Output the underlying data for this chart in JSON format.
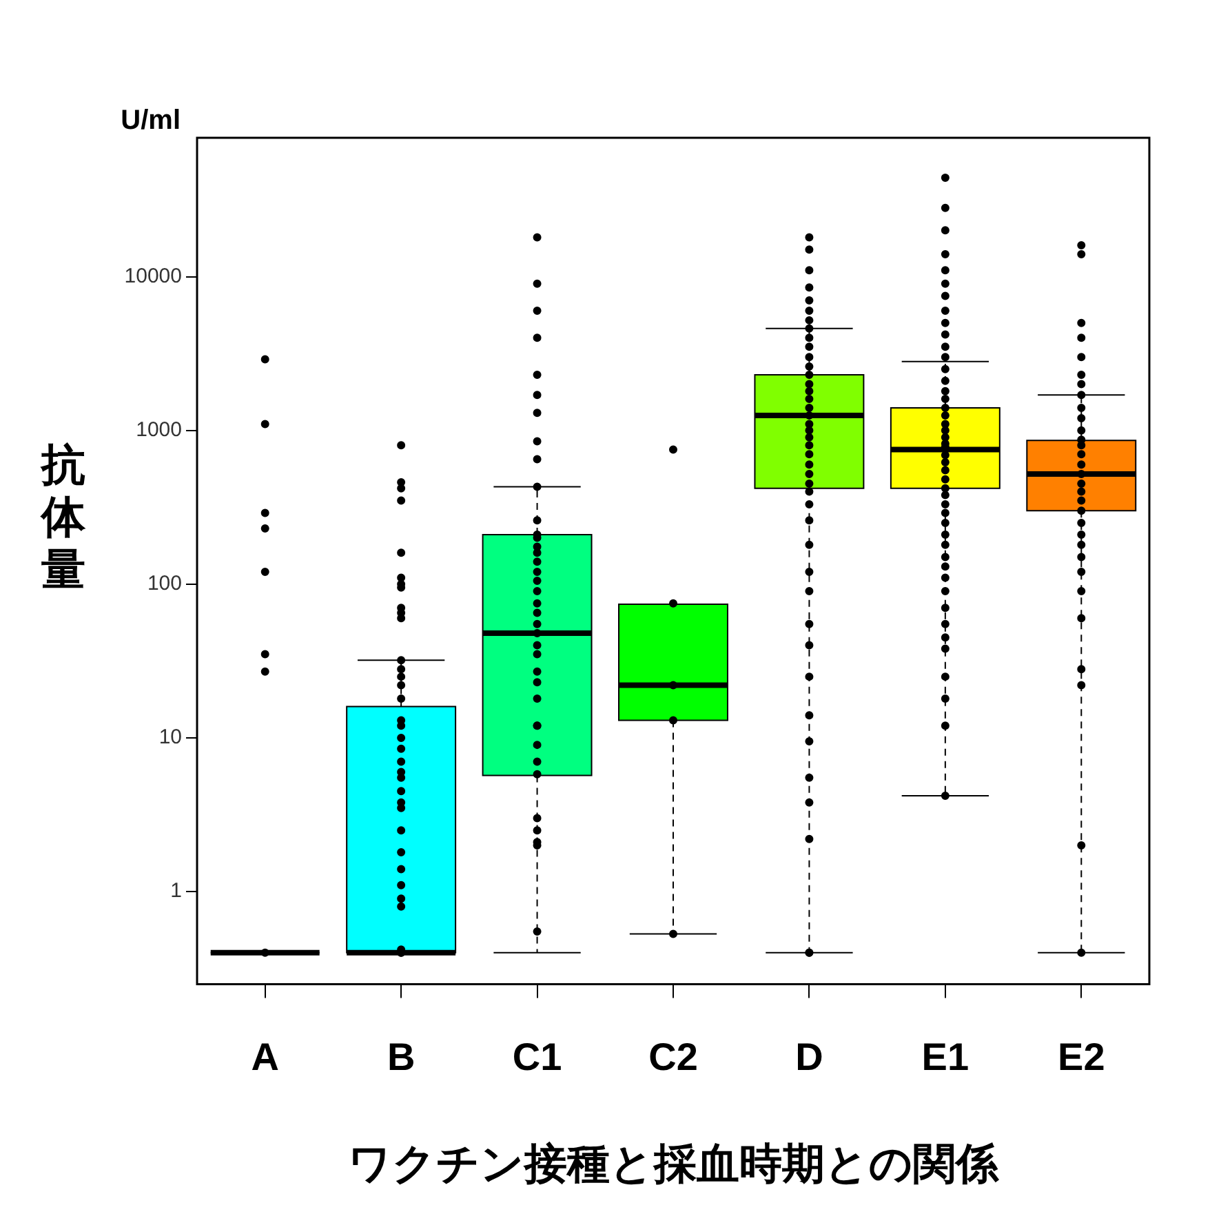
{
  "chart_data": {
    "type": "box",
    "xlabel": "ワクチン接種と採血時期との関係",
    "ylabel": "抗体量",
    "annotations": [
      "U/ml"
    ],
    "categories": [
      "A",
      "B",
      "C1",
      "C2",
      "D",
      "E1",
      "E2"
    ],
    "colors": [
      "#000000",
      "#00ffff",
      "#00ff80",
      "#00ff00",
      "#80ff00",
      "#ffff00",
      "#ff8000"
    ],
    "boxes": [
      {
        "low": 0.4,
        "q1": 0.4,
        "median": 0.4,
        "q3": 0.4,
        "high": 0.4
      },
      {
        "low": 0.4,
        "q1": 0.4,
        "median": 0.4,
        "q3": 16,
        "high": 32
      },
      {
        "low": 0.4,
        "q1": 5.7,
        "median": 48,
        "q3": 210,
        "high": 430
      },
      {
        "low": 0.53,
        "q1": 13,
        "median": 22,
        "q3": 74,
        "high": 74
      },
      {
        "low": 0.4,
        "q1": 420,
        "median": 1250,
        "q3": 2300,
        "high": 4600
      },
      {
        "low": 4.2,
        "q1": 420,
        "median": 750,
        "q3": 1400,
        "high": 2800
      },
      {
        "low": 0.4,
        "q1": 300,
        "median": 520,
        "q3": 860,
        "high": 1700
      }
    ],
    "series": [
      {
        "type": "scatter",
        "color": "#000000",
        "x": [
          "A",
          "A",
          "A",
          "A",
          "A",
          "A",
          "A",
          "A",
          "B",
          "B",
          "B",
          "B",
          "B",
          "B",
          "B",
          "B",
          "B",
          "B",
          "B",
          "B",
          "B",
          "B",
          "B",
          "B",
          "B",
          "B",
          "B",
          "B",
          "B",
          "B",
          "B",
          "B",
          "B",
          "B",
          "B",
          "B",
          "B",
          "B",
          "B",
          "B",
          "B",
          "B",
          "B",
          "C1",
          "C1",
          "C1",
          "C1",
          "C1",
          "C1",
          "C1",
          "C1",
          "C1",
          "C1",
          "C1",
          "C1",
          "C1",
          "C1",
          "C1",
          "C1",
          "C1",
          "C1",
          "C1",
          "C1",
          "C1",
          "C1",
          "C1",
          "C1",
          "C1",
          "C1",
          "C1",
          "C1",
          "C1",
          "C1",
          "C1",
          "C1",
          "C1",
          "C1",
          "C1",
          "C1",
          "C1",
          "C1",
          "C2",
          "C2",
          "C2",
          "C2",
          "C2",
          "D",
          "D",
          "D",
          "D",
          "D",
          "D",
          "D",
          "D",
          "D",
          "D",
          "D",
          "D",
          "D",
          "D",
          "D",
          "D",
          "D",
          "D",
          "D",
          "D",
          "D",
          "D",
          "D",
          "D",
          "D",
          "D",
          "D",
          "D",
          "D",
          "D",
          "D",
          "D",
          "D",
          "D",
          "D",
          "D",
          "D",
          "D",
          "D",
          "D",
          "D",
          "D",
          "E1",
          "E1",
          "E1",
          "E1",
          "E1",
          "E1",
          "E1",
          "E1",
          "E1",
          "E1",
          "E1",
          "E1",
          "E1",
          "E1",
          "E1",
          "E1",
          "E1",
          "E1",
          "E1",
          "E1",
          "E1",
          "E1",
          "E1",
          "E1",
          "E1",
          "E1",
          "E1",
          "E1",
          "E1",
          "E1",
          "E1",
          "E1",
          "E1",
          "E1",
          "E1",
          "E1",
          "E1",
          "E1",
          "E1",
          "E1",
          "E1",
          "E1",
          "E1",
          "E1",
          "E1",
          "E1",
          "E2",
          "E2",
          "E2",
          "E2",
          "E2",
          "E2",
          "E2",
          "E2",
          "E2",
          "E2",
          "E2",
          "E2",
          "E2",
          "E2",
          "E2",
          "E2",
          "E2",
          "E2",
          "E2",
          "E2",
          "E2",
          "E2",
          "E2",
          "E2",
          "E2",
          "E2",
          "E2",
          "E2",
          "E2",
          "E2",
          "E2"
        ],
        "values": [
          0.4,
          27,
          35,
          120,
          230,
          290,
          1100,
          2900,
          0.4,
          0.42,
          0.8,
          0.9,
          1.1,
          1.4,
          1.8,
          2.5,
          3.5,
          3.8,
          4.5,
          5.5,
          6,
          7,
          8.5,
          10,
          12,
          13,
          18,
          22,
          25,
          28,
          32,
          60,
          65,
          70,
          95,
          100,
          110,
          160,
          350,
          420,
          460,
          800,
          0.4,
          0.55,
          2,
          2.1,
          2.5,
          3,
          5.8,
          7,
          9,
          12,
          12,
          18,
          23,
          27,
          35,
          40,
          48,
          55,
          65,
          75,
          90,
          105,
          120,
          140,
          160,
          175,
          200,
          210,
          260,
          430,
          650,
          850,
          1300,
          1700,
          2300,
          4000,
          6000,
          9000,
          18000,
          0.53,
          13,
          22,
          75,
          750,
          0.4,
          0.4,
          2.2,
          3.8,
          5.5,
          9.5,
          14,
          25,
          40,
          55,
          90,
          120,
          180,
          260,
          330,
          400,
          450,
          520,
          600,
          700,
          800,
          900,
          1000,
          1100,
          1250,
          1400,
          1600,
          1800,
          2000,
          2300,
          2600,
          3000,
          3500,
          4000,
          4600,
          5200,
          6000,
          7000,
          8500,
          11000,
          15000,
          18000,
          4.2,
          12,
          18,
          25,
          38,
          45,
          55,
          70,
          90,
          110,
          130,
          150,
          180,
          210,
          250,
          290,
          330,
          380,
          420,
          480,
          550,
          620,
          690,
          780,
          820,
          900,
          1000,
          1100,
          1250,
          1400,
          1600,
          1800,
          2100,
          2500,
          3000,
          3500,
          4200,
          5000,
          6000,
          7500,
          9000,
          11000,
          14000,
          20000,
          28000,
          44000,
          0.4,
          2,
          22,
          28,
          60,
          90,
          120,
          150,
          180,
          210,
          250,
          300,
          350,
          400,
          450,
          520,
          600,
          700,
          800,
          870,
          1000,
          1200,
          1400,
          1700,
          2000,
          2300,
          3000,
          4000,
          5000,
          14000,
          16000
        ]
      }
    ],
    "ylim": [
      0.25,
      80000
    ],
    "yticks": [
      1,
      10,
      100,
      1000,
      10000
    ],
    "log": true,
    "grid": false,
    "marker": "circle"
  }
}
